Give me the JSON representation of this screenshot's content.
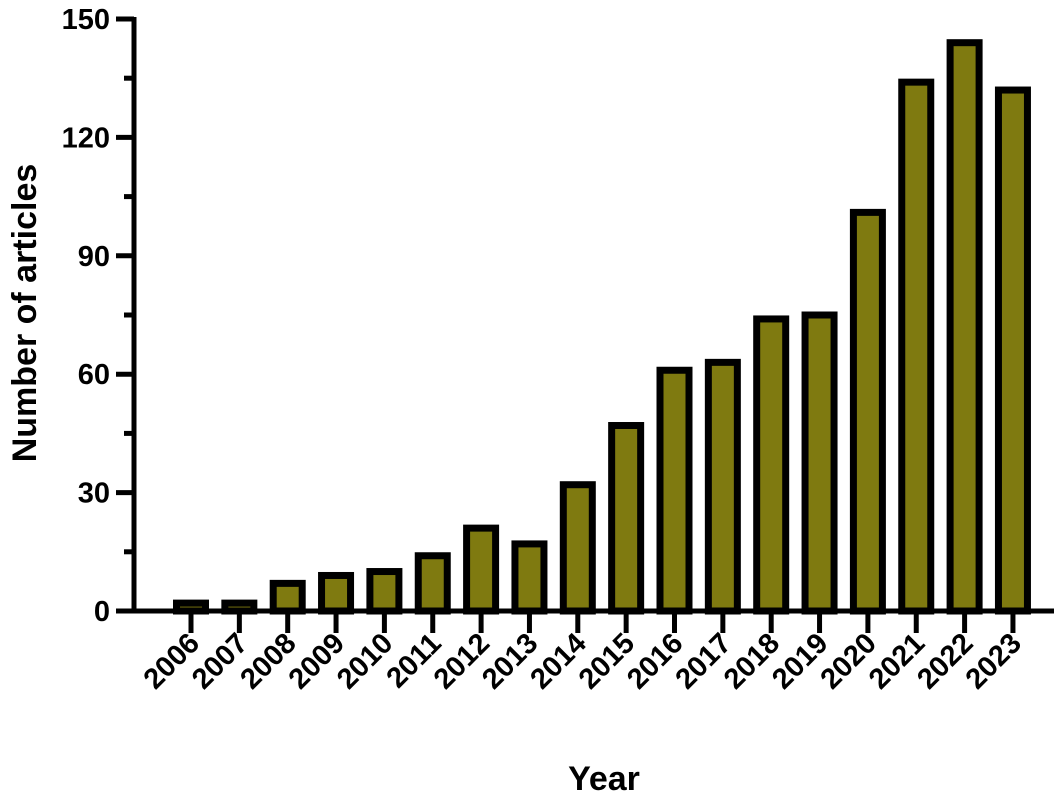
{
  "chart_data": {
    "type": "bar",
    "title": "",
    "xlabel": "Year",
    "ylabel": "Number of articles",
    "categories": [
      "2006",
      "2007",
      "2008",
      "2009",
      "2010",
      "2011",
      "2012",
      "2013",
      "2014",
      "2015",
      "2016",
      "2017",
      "2018",
      "2019",
      "2020",
      "2021",
      "2022",
      "2023"
    ],
    "values": [
      2,
      2,
      7,
      9,
      10,
      14,
      21,
      17,
      32,
      47,
      61,
      63,
      74,
      75,
      101,
      134,
      144,
      132
    ],
    "ylim": [
      0,
      150
    ],
    "yticks": [
      "0",
      "30",
      "60",
      "90",
      "120",
      "150"
    ],
    "grid": false,
    "legend": "none",
    "colors": {
      "bar_fill": "#7f7a10",
      "bar_stroke": "#000000"
    }
  }
}
